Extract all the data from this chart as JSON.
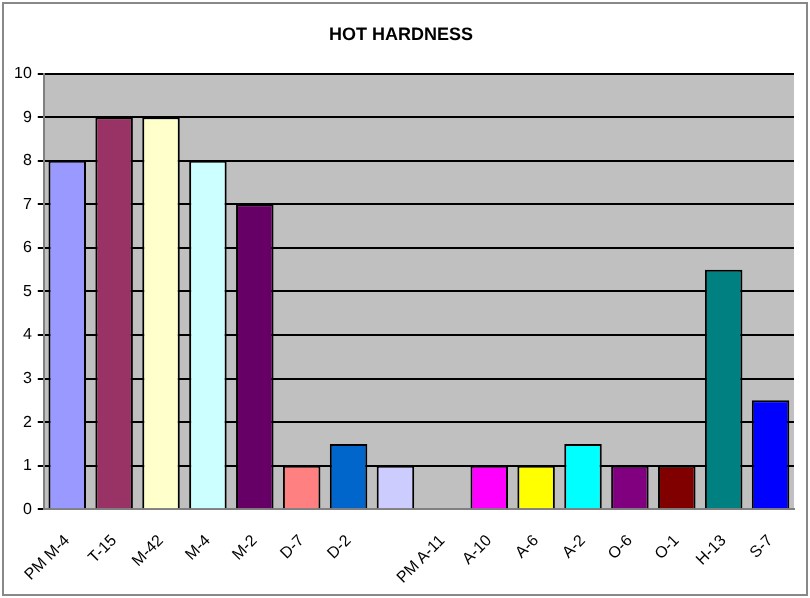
{
  "chart_data": {
    "type": "bar",
    "title": "HOT HARDNESS",
    "categories": [
      "PM M-4",
      "T-15",
      "M-42",
      "M-4",
      "M-2",
      "D-7",
      "D-2",
      null,
      "PM A-11",
      "A-10",
      "A-6",
      "A-2",
      "O-6",
      "O-1",
      "H-13",
      "S-7"
    ],
    "values": [
      8,
      9,
      9,
      8,
      7,
      1,
      1.5,
      1,
      null,
      1,
      1,
      1.5,
      1,
      1,
      5.5,
      2.5
    ],
    "colors": [
      "#9999ff",
      "#993366",
      "#ffffcc",
      "#ccffff",
      "#660066",
      "#ff8080",
      "#0066cc",
      "#ccccff",
      "#000080",
      "#ff00ff",
      "#ffff00",
      "#00ffff",
      "#800080",
      "#800000",
      "#008080",
      "#0000ff"
    ],
    "ylim": [
      0,
      10
    ],
    "yticks": [
      0,
      1,
      2,
      3,
      4,
      5,
      6,
      7,
      8,
      9,
      10
    ],
    "grid": "y"
  }
}
